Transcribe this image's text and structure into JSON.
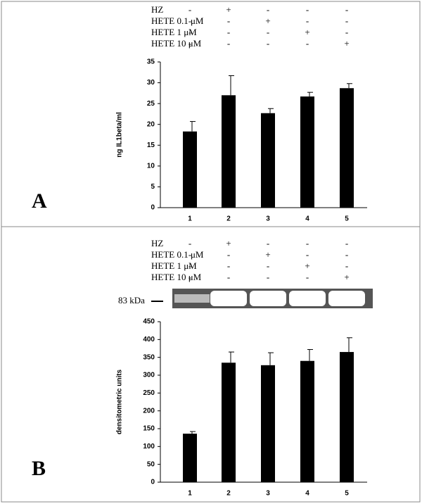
{
  "chart_data": [
    {
      "type": "bar",
      "panel_label": "A",
      "treatments": [
        {
          "label": "HZ",
          "marks": [
            "-",
            "+",
            "-",
            "-",
            "-"
          ]
        },
        {
          "label": "HETE 0.1 μM",
          "marks": [
            "-",
            "-",
            "+",
            "-",
            "-"
          ]
        },
        {
          "label": "HETE 1 μM",
          "marks": [
            "-",
            "-",
            "-",
            "+",
            "-"
          ]
        },
        {
          "label": "HETE 10 μM",
          "marks": [
            "-",
            "-",
            "-",
            "-",
            "+"
          ]
        }
      ],
      "ylabel": "ng IL1beta/ml",
      "categories": [
        "1",
        "2",
        "3",
        "4",
        "5"
      ],
      "values": [
        18.3,
        27,
        22.7,
        26.7,
        28.7
      ],
      "errors": [
        2.4,
        4.7,
        1.1,
        1.0,
        1.1
      ],
      "color": "#000000",
      "ylim": [
        0,
        35
      ],
      "yticks": [
        0,
        5,
        10,
        15,
        20,
        25,
        30,
        35
      ]
    },
    {
      "type": "bar",
      "panel_label": "B",
      "treatments": [
        {
          "label": "HZ",
          "marks": [
            "-",
            "+",
            "-",
            "-",
            "-"
          ]
        },
        {
          "label": "HETE 0.1 μM",
          "marks": [
            "-",
            "-",
            "+",
            "-",
            "-"
          ]
        },
        {
          "label": "HETE 1 μM",
          "marks": [
            "-",
            "-",
            "-",
            "+",
            "-"
          ]
        },
        {
          "label": "HETE 10 μM",
          "marks": [
            "-",
            "-",
            "-",
            "-",
            "+"
          ]
        }
      ],
      "blot_label": "83 kDa",
      "ylabel": "densitometric units",
      "categories": [
        "1",
        "2",
        "3",
        "4",
        "5"
      ],
      "values": [
        136,
        335,
        328,
        340,
        365
      ],
      "errors": [
        6,
        30,
        35,
        32,
        40
      ],
      "color": "#000000",
      "ylim": [
        0,
        450
      ],
      "yticks": [
        0,
        50,
        100,
        150,
        200,
        250,
        300,
        350,
        400,
        450
      ]
    }
  ]
}
